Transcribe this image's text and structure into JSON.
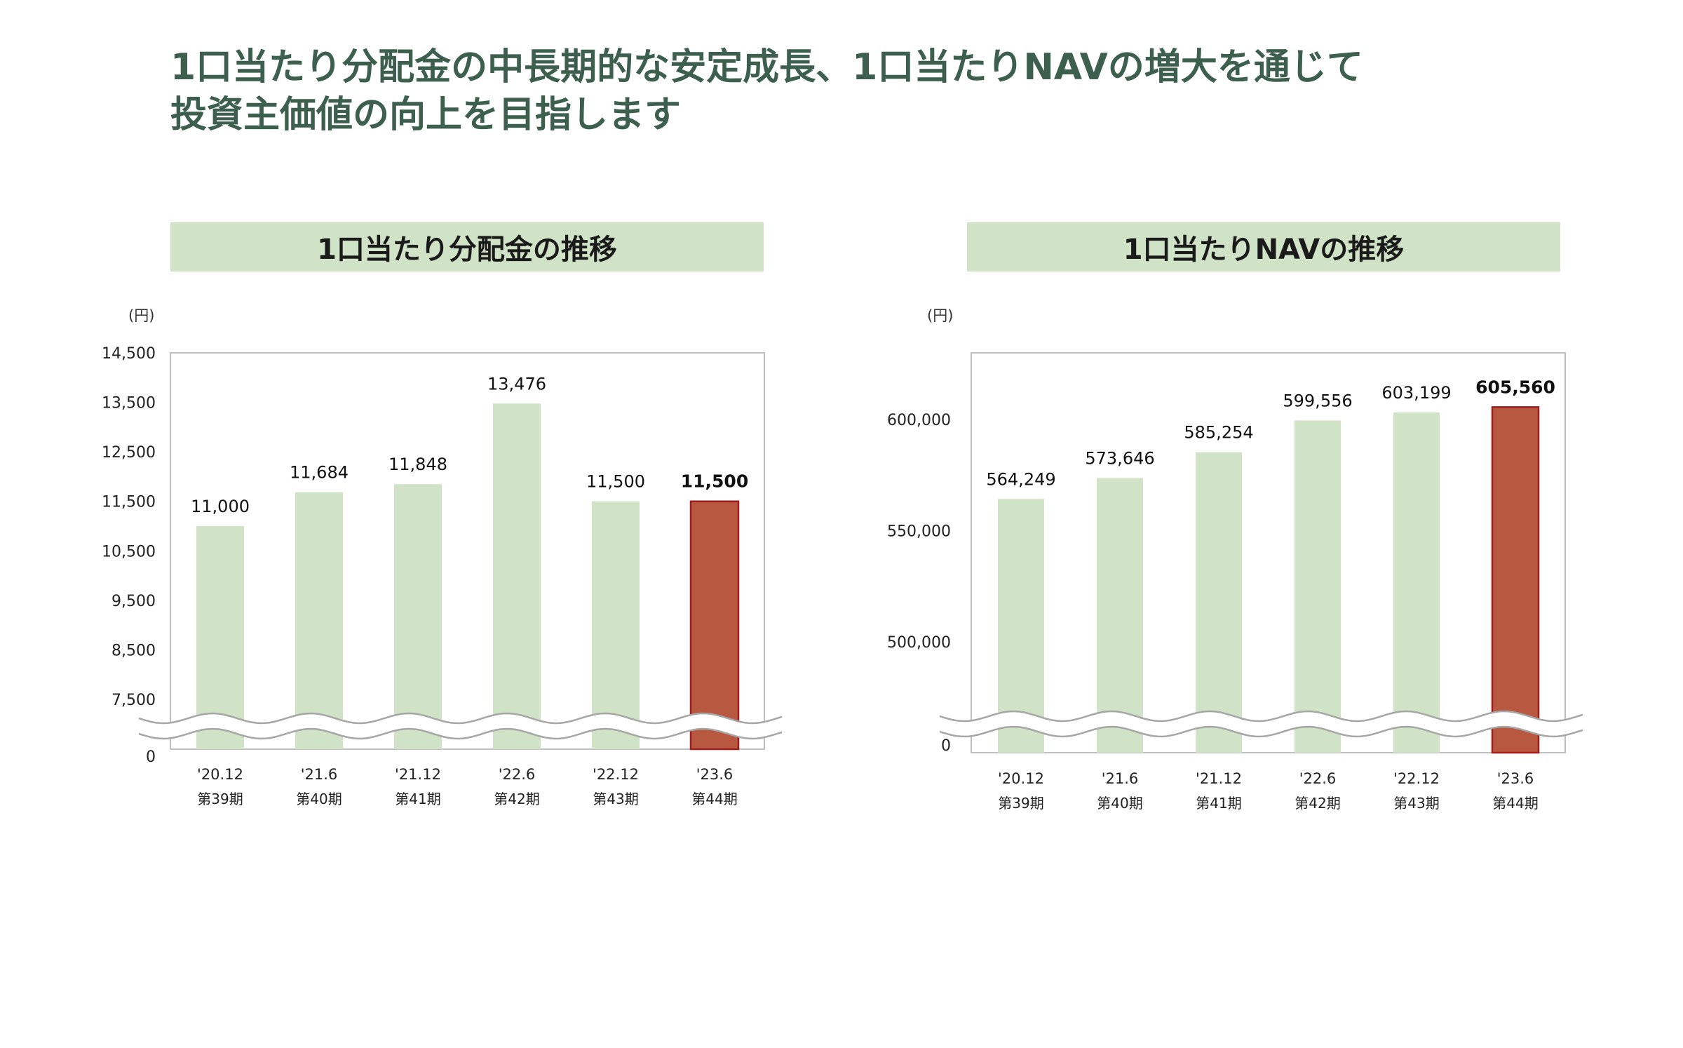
{
  "headline": {
    "line1": "1口当たり分配金の中長期的な安定成長、1口当たりNAVの増大を通じて",
    "line2": "投資主価値の向上を目指します"
  },
  "colors": {
    "headline": "#3d5f4e",
    "panel_title_bg": "#d1e3c6",
    "bar": "#d1e3c6",
    "highlight_bar": "#b95840",
    "highlight_border": "#a01d1d",
    "axis": "#bfbfbf"
  },
  "chart_data": [
    {
      "type": "bar",
      "title": "1口当たり分配金の推移",
      "unit_label": "(円)",
      "categories": [
        "'20.12",
        "'21.6",
        "'21.12",
        "'22.6",
        "'22.12",
        "'23.6"
      ],
      "period_labels": [
        "第39期",
        "第40期",
        "第41期",
        "第42期",
        "第43期",
        "第44期"
      ],
      "values": [
        11000,
        11684,
        11848,
        13476,
        11500,
        11500
      ],
      "value_labels": [
        "11,000",
        "11,684",
        "11,848",
        "13,476",
        "11,500",
        "11,500"
      ],
      "highlight_index": 5,
      "yticks": [
        7500,
        8500,
        9500,
        10500,
        11500,
        12500,
        13500,
        14500
      ],
      "ytick_labels": [
        "7,500",
        "8,500",
        "9,500",
        "10,500",
        "11,500",
        "12,500",
        "13,500",
        "14,500"
      ],
      "zero_label": "0",
      "ylim": [
        0,
        14500
      ],
      "axis_break": true,
      "grid": false
    },
    {
      "type": "bar",
      "title": "1口当たりNAVの推移",
      "unit_label": "(円)",
      "categories": [
        "'20.12",
        "'21.6",
        "'21.12",
        "'22.6",
        "'22.12",
        "'23.6"
      ],
      "period_labels": [
        "第39期",
        "第40期",
        "第41期",
        "第42期",
        "第43期",
        "第44期"
      ],
      "values": [
        564249,
        573646,
        585254,
        599556,
        603199,
        605560
      ],
      "value_labels": [
        "564,249",
        "573,646",
        "585,254",
        "599,556",
        "603,199",
        "605,560"
      ],
      "highlight_index": 5,
      "yticks": [
        500000,
        550000,
        600000
      ],
      "ytick_labels": [
        "500,000",
        "550,000",
        "600,000"
      ],
      "zero_label": "0",
      "ylim": [
        0,
        630000
      ],
      "axis_break": true,
      "grid": false
    }
  ]
}
